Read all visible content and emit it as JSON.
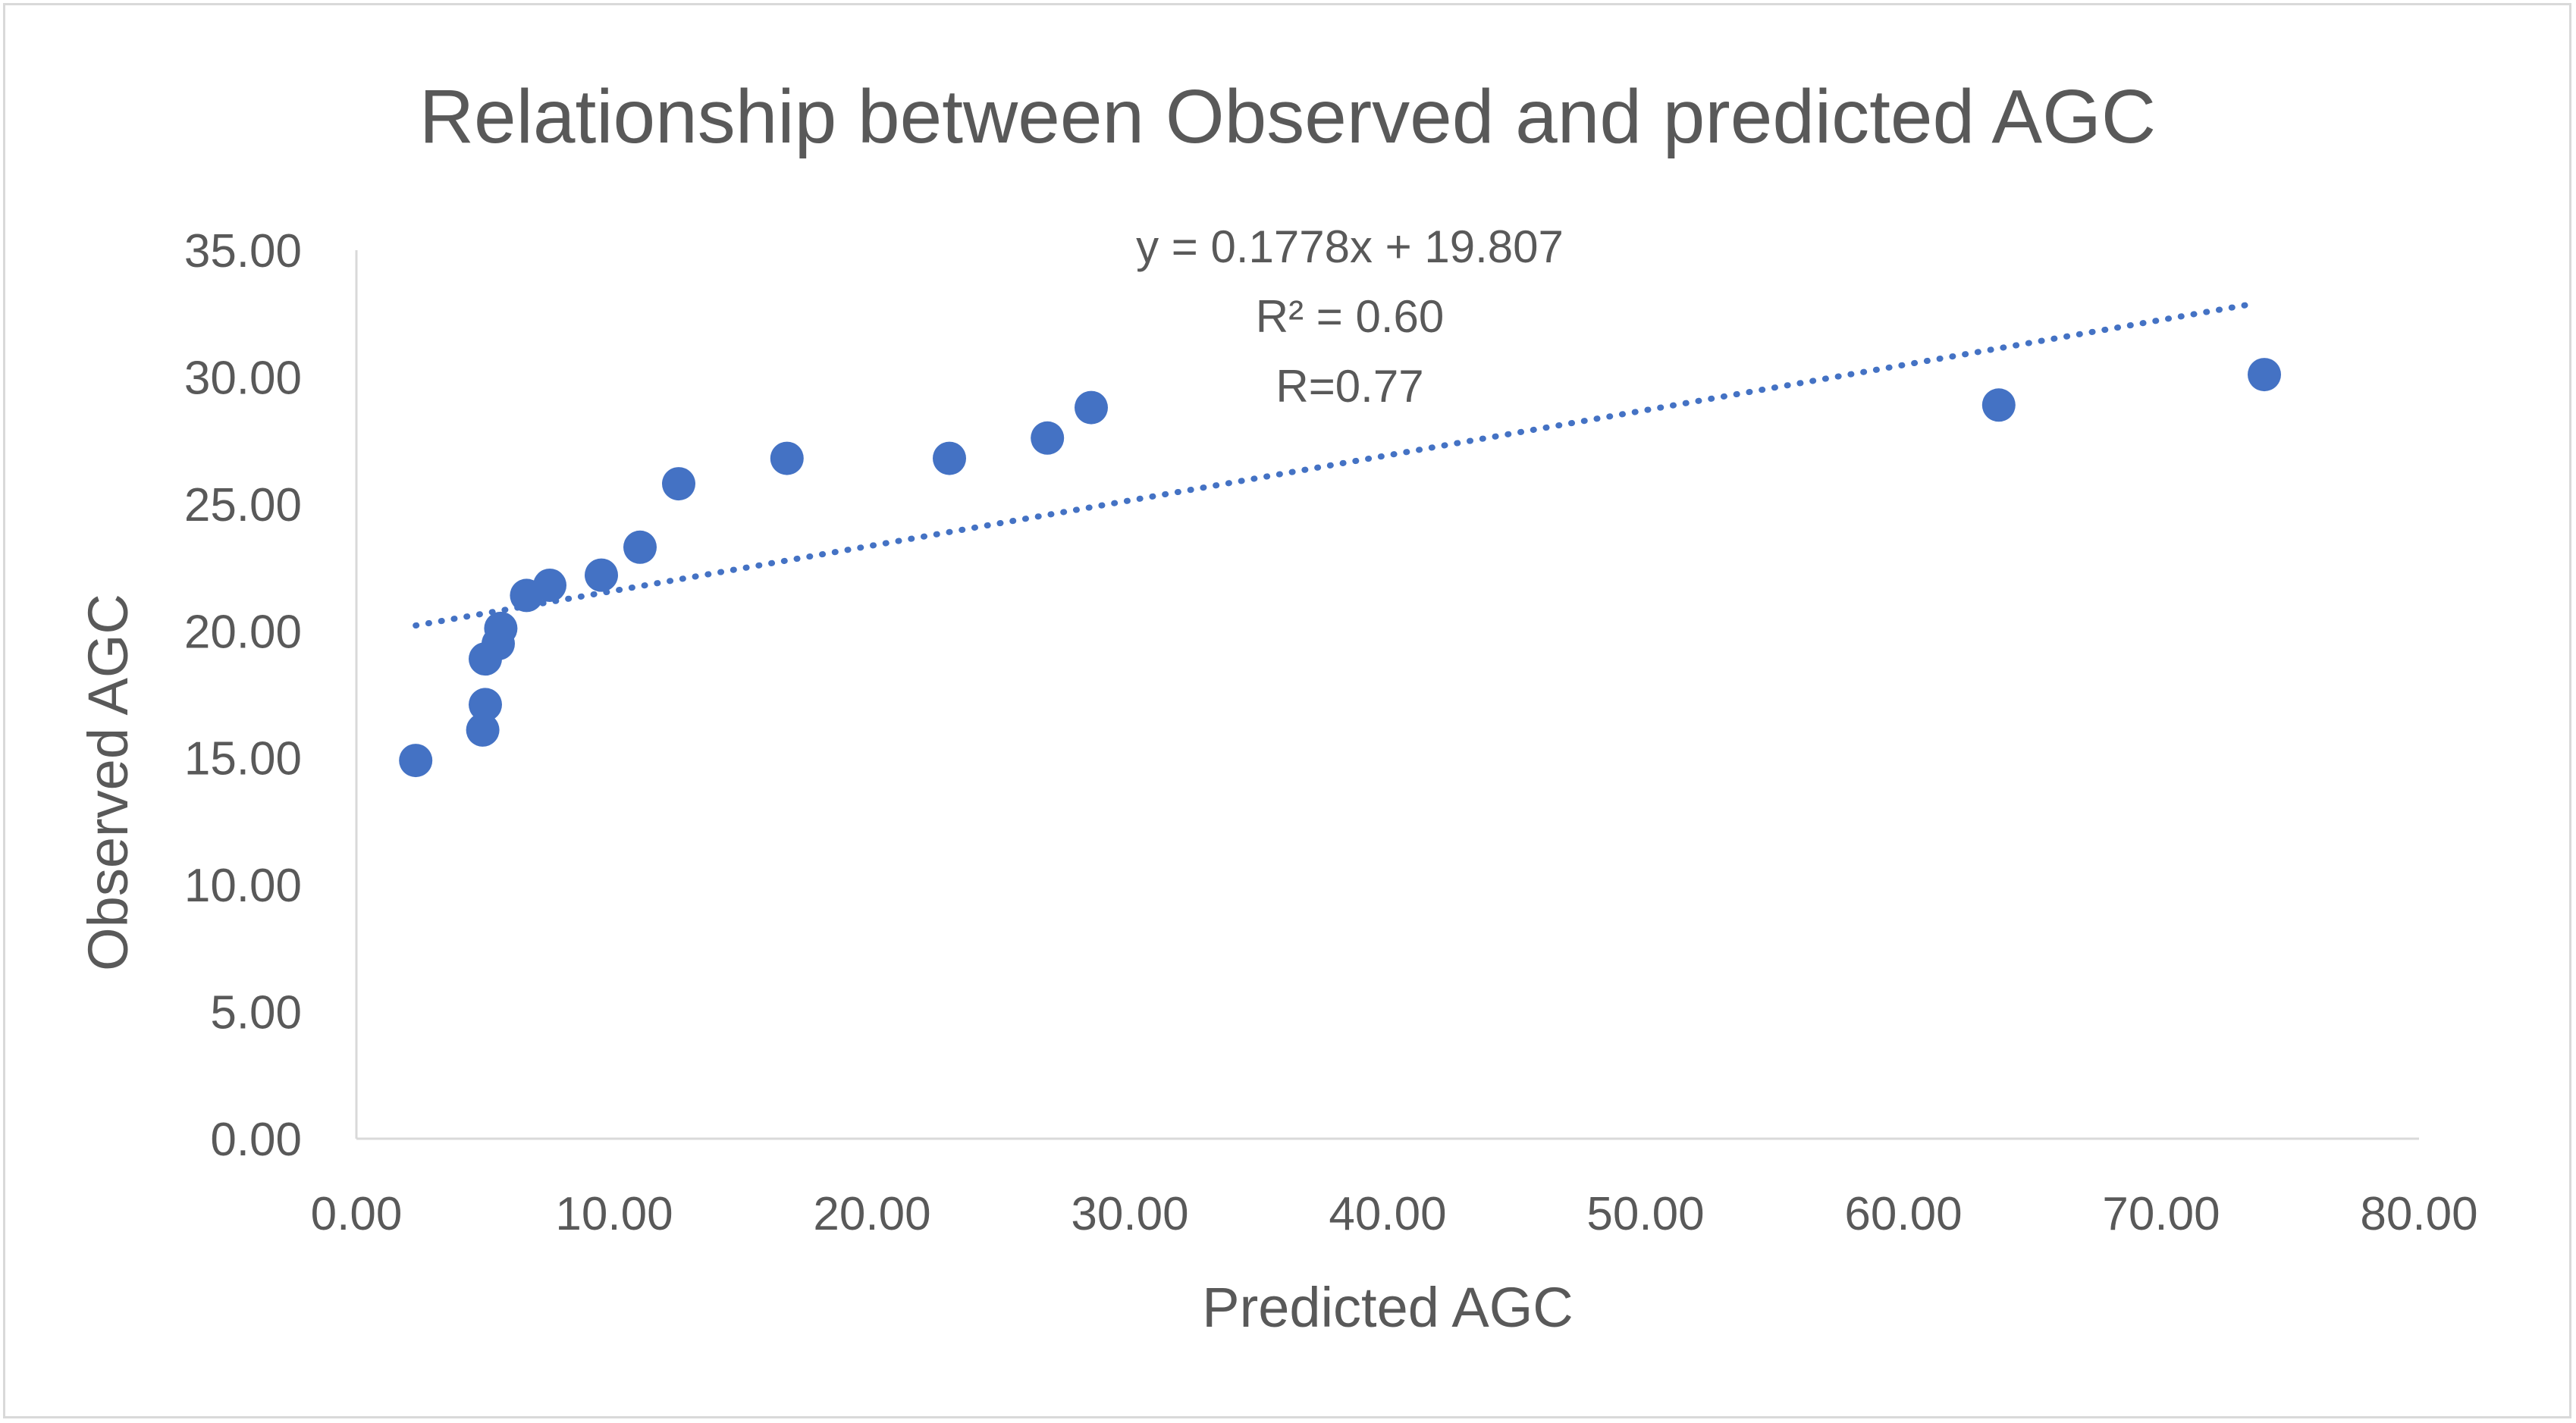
{
  "chart_data": {
    "type": "scatter",
    "title": "Relationship between Observed and predicted AGC",
    "xlabel": "Predicted  AGC",
    "ylabel": "Observed AGC",
    "xlim": [
      0,
      80
    ],
    "ylim": [
      0,
      35
    ],
    "x_ticks": [
      "0.00",
      "10.00",
      "20.00",
      "30.00",
      "40.00",
      "50.00",
      "60.00",
      "70.00",
      "80.00"
    ],
    "y_ticks": [
      "0.00",
      "5.00",
      "10.00",
      "15.00",
      "20.00",
      "25.00",
      "30.00",
      "35.00"
    ],
    "grid": false,
    "legend": "none",
    "marker_color": "#4472c4",
    "trendline_color": "#4472c4",
    "series": [
      {
        "points": [
          {
            "x": 2.3,
            "y": 14.9
          },
          {
            "x": 4.9,
            "y": 16.1
          },
          {
            "x": 5.0,
            "y": 17.1
          },
          {
            "x": 5.0,
            "y": 18.9
          },
          {
            "x": 5.5,
            "y": 19.5
          },
          {
            "x": 5.6,
            "y": 20.1
          },
          {
            "x": 6.6,
            "y": 21.4
          },
          {
            "x": 7.5,
            "y": 21.8
          },
          {
            "x": 9.5,
            "y": 22.2
          },
          {
            "x": 11.0,
            "y": 23.3
          },
          {
            "x": 12.5,
            "y": 25.8
          },
          {
            "x": 16.7,
            "y": 26.8
          },
          {
            "x": 23.0,
            "y": 26.8
          },
          {
            "x": 26.8,
            "y": 27.6
          },
          {
            "x": 28.5,
            "y": 28.8
          },
          {
            "x": 63.7,
            "y": 28.9
          },
          {
            "x": 74.0,
            "y": 30.1
          }
        ]
      }
    ],
    "trendline": {
      "slope": 0.1778,
      "intercept": 19.807,
      "x_start": 2.3,
      "x_end": 73.4
    },
    "annotations": [
      "y = 0.1778x + 19.807",
      "R² = 0.60",
      "R=0.77"
    ]
  }
}
